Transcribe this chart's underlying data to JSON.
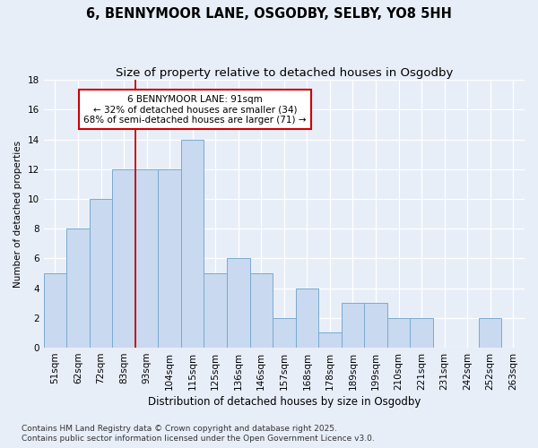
{
  "title": "6, BENNYMOOR LANE, OSGODBY, SELBY, YO8 5HH",
  "subtitle": "Size of property relative to detached houses in Osgodby",
  "xlabel": "Distribution of detached houses by size in Osgodby",
  "ylabel": "Number of detached properties",
  "categories": [
    "51sqm",
    "62sqm",
    "72sqm",
    "83sqm",
    "93sqm",
    "104sqm",
    "115sqm",
    "125sqm",
    "136sqm",
    "146sqm",
    "157sqm",
    "168sqm",
    "178sqm",
    "189sqm",
    "199sqm",
    "210sqm",
    "221sqm",
    "231sqm",
    "242sqm",
    "252sqm",
    "263sqm"
  ],
  "values": [
    5,
    8,
    10,
    12,
    12,
    12,
    14,
    5,
    6,
    5,
    2,
    4,
    1,
    3,
    3,
    2,
    2,
    0,
    0,
    2,
    0
  ],
  "bar_color": "#c8d9f0",
  "bar_edge_color": "#7aaad0",
  "red_line_index": 4,
  "red_line_label": "6 BENNYMOOR LANE: 91sqm",
  "annotation_line1": "← 32% of detached houses are smaller (34)",
  "annotation_line2": "68% of semi-detached houses are larger (71) →",
  "annotation_box_color": "#ffffff",
  "annotation_box_edge": "#cc0000",
  "ylim": [
    0,
    18
  ],
  "yticks": [
    0,
    2,
    4,
    6,
    8,
    10,
    12,
    14,
    16,
    18
  ],
  "background_color": "#e8eef8",
  "grid_color": "#ffffff",
  "footer": "Contains HM Land Registry data © Crown copyright and database right 2025.\nContains public sector information licensed under the Open Government Licence v3.0.",
  "title_fontsize": 10.5,
  "subtitle_fontsize": 9.5,
  "xlabel_fontsize": 8.5,
  "ylabel_fontsize": 7.5,
  "tick_fontsize": 7.5,
  "footer_fontsize": 6.5,
  "annot_fontsize": 7.5
}
